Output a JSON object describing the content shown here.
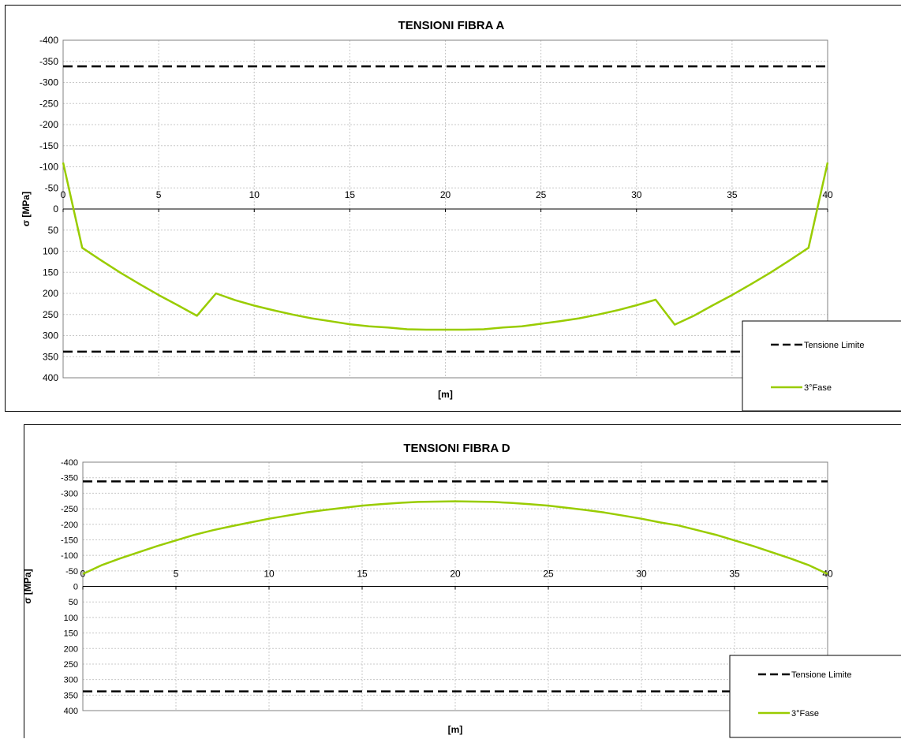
{
  "chart_data": [
    {
      "type": "line",
      "title": "TENSIONI FIBRA A",
      "xlabel": "[m]",
      "ylabel": "σ [MPa]",
      "xlim": [
        0,
        40
      ],
      "ylim": [
        -400,
        400
      ],
      "y_reversed": true,
      "x_ticks": [
        "0",
        "5",
        "10",
        "15",
        "20",
        "25",
        "30",
        "35",
        "40"
      ],
      "y_ticks": [
        "-400",
        "-350",
        "-300",
        "-250",
        "-200",
        "-150",
        "-100",
        "-50",
        "0",
        "50",
        "100",
        "150",
        "200",
        "250",
        "300",
        "350",
        "400"
      ],
      "grid": true,
      "legend_position": "bottom-right",
      "series": [
        {
          "name": "Tensione Limite",
          "style": "dashed",
          "color": "#000000",
          "segments": [
            {
              "x": [
                0,
                40
              ],
              "y": [
                -338,
                -338
              ]
            },
            {
              "x": [
                0,
                40
              ],
              "y": [
                338,
                338
              ]
            }
          ]
        },
        {
          "name": "3°Fase",
          "style": "solid",
          "color": "#99cc00",
          "x": [
            0,
            1,
            2,
            3,
            4,
            5,
            6,
            7,
            8,
            9,
            10,
            11,
            12,
            13,
            14,
            15,
            16,
            17,
            18,
            19,
            20,
            21,
            22,
            23,
            24,
            25,
            26,
            27,
            28,
            29,
            30,
            31,
            32,
            33,
            34,
            35,
            36,
            37,
            38,
            39,
            40
          ],
          "y": [
            -110,
            92,
            122,
            151,
            178,
            204,
            228,
            253,
            200,
            216,
            229,
            240,
            250,
            259,
            266,
            273,
            278,
            281,
            285,
            286,
            286,
            286,
            285,
            281,
            278,
            272,
            266,
            259,
            250,
            240,
            228,
            215,
            274,
            253,
            228,
            204,
            178,
            151,
            122,
            92,
            -110
          ]
        }
      ]
    },
    {
      "type": "line",
      "title": "TENSIONI FIBRA D",
      "xlabel": "[m]",
      "ylabel": "σ [MPa]",
      "xlim": [
        0,
        40
      ],
      "ylim": [
        -400,
        400
      ],
      "y_reversed": true,
      "x_ticks": [
        "0",
        "5",
        "10",
        "15",
        "20",
        "25",
        "30",
        "35",
        "40"
      ],
      "y_ticks": [
        "-400",
        "-350",
        "-300",
        "-250",
        "-200",
        "-150",
        "-100",
        "-50",
        "0",
        "50",
        "100",
        "150",
        "200",
        "250",
        "300",
        "350",
        "400"
      ],
      "grid": true,
      "legend_position": "bottom-right",
      "series": [
        {
          "name": "Tensione Limite",
          "style": "dashed",
          "color": "#000000",
          "segments": [
            {
              "x": [
                0,
                40
              ],
              "y": [
                -338,
                -338
              ]
            },
            {
              "x": [
                0,
                40
              ],
              "y": [
                338,
                338
              ]
            }
          ]
        },
        {
          "name": "3°Fase",
          "style": "solid",
          "color": "#99cc00",
          "x": [
            0,
            1,
            2,
            3,
            4,
            5,
            6,
            7,
            8,
            9,
            10,
            11,
            12,
            13,
            14,
            15,
            16,
            17,
            18,
            19,
            20,
            21,
            22,
            23,
            24,
            25,
            26,
            27,
            28,
            29,
            30,
            31,
            32,
            33,
            34,
            35,
            36,
            37,
            38,
            39,
            40
          ],
          "y": [
            -40,
            -68,
            -90,
            -110,
            -130,
            -148,
            -166,
            -181,
            -194,
            -206,
            -218,
            -228,
            -238,
            -246,
            -253,
            -260,
            -265,
            -269,
            -272,
            -273,
            -274,
            -273,
            -272,
            -269,
            -265,
            -260,
            -253,
            -246,
            -238,
            -228,
            -218,
            -206,
            -196,
            -181,
            -166,
            -148,
            -130,
            -110,
            -90,
            -68,
            -40
          ]
        }
      ]
    }
  ]
}
